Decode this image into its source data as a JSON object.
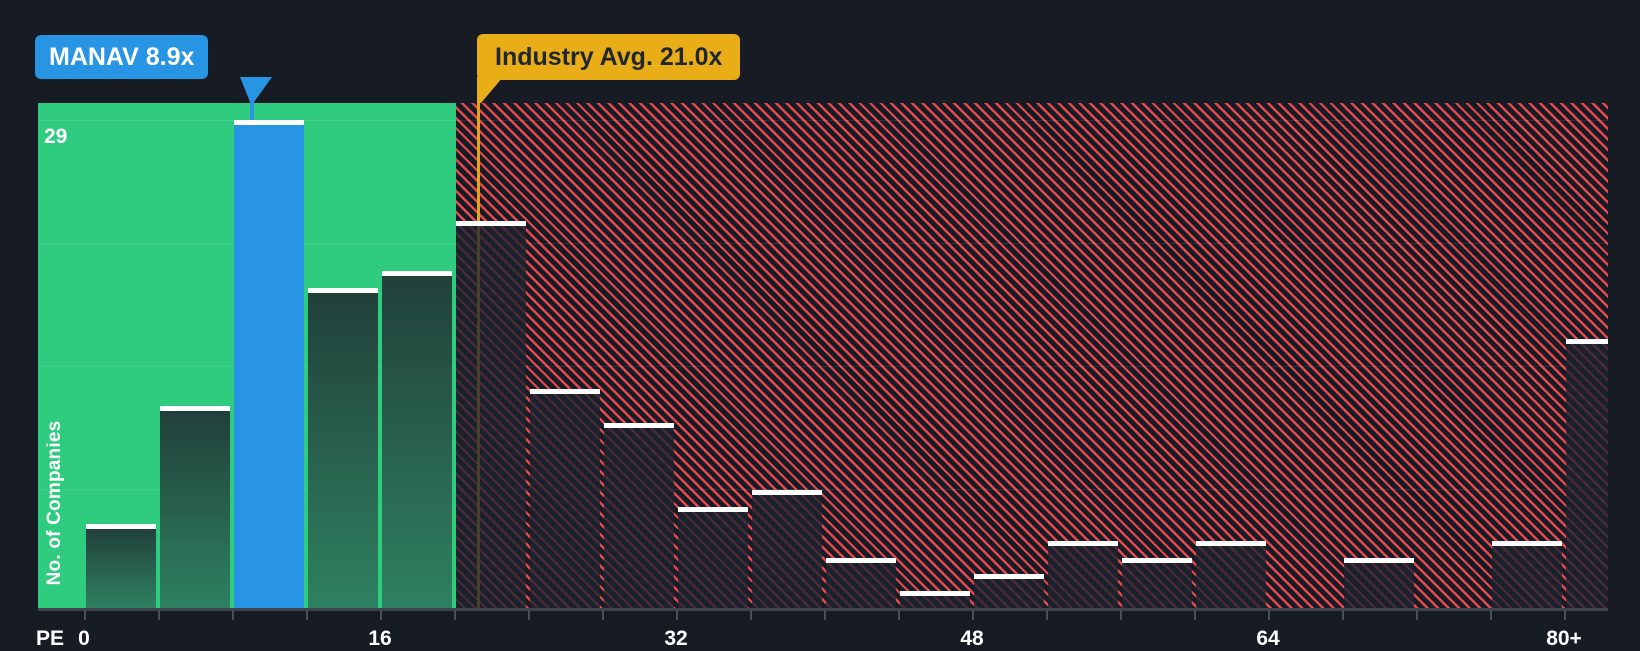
{
  "chart_data": {
    "type": "bar",
    "subtype": "histogram",
    "title": "",
    "xlabel": "PE",
    "ylabel": "No. of Companies",
    "y_max_label": "29",
    "ylim": [
      0,
      29
    ],
    "grid": true,
    "bucket_width_pe": 4,
    "x_tick_labels": [
      "0",
      "16",
      "32",
      "48",
      "64",
      "80+"
    ],
    "categories": [
      "0-4",
      "4-8",
      "8-12",
      "12-16",
      "16-20",
      "20-24",
      "24-28",
      "28-32",
      "32-36",
      "36-40",
      "40-44",
      "44-48",
      "48-52",
      "52-56",
      "56-60",
      "60-64",
      "64-68",
      "68-72",
      "72-76",
      "76-80",
      "80+"
    ],
    "values": [
      5,
      12,
      29,
      19,
      20,
      23,
      13,
      11,
      6,
      7,
      3,
      1,
      2,
      4,
      3,
      4,
      0,
      3,
      0,
      4,
      16
    ],
    "highlight_index": 2,
    "company": {
      "ticker": "MANAV",
      "pe": "8.9x",
      "label": "MANAV 8.9x"
    },
    "industry": {
      "avg_pe": "21.0x",
      "label": "Industry Avg. 21.0x"
    },
    "zones": {
      "below_average": "green",
      "above_average": "red-hatched"
    },
    "legend_position": "none"
  },
  "labels": {
    "y_max": "29",
    "y_axis": "No. of Companies",
    "x_axis": "PE"
  },
  "colors": {
    "background": "#161B24",
    "green_zone": "#2FCB7E",
    "green_bar_top": "#21403A",
    "green_bar_bottom": "#2E8160",
    "highlight_blue": "#2795E4",
    "hatch_red": "#E7484F",
    "dark_bar": "rgba(28,34,46,0.78)",
    "industry_yellow": "#E9AD18",
    "industry_line": "#E2A719",
    "bar_cap_white": "#FFFFFF",
    "dark_text": "#1F2732",
    "axis_line": "#3E4550"
  }
}
